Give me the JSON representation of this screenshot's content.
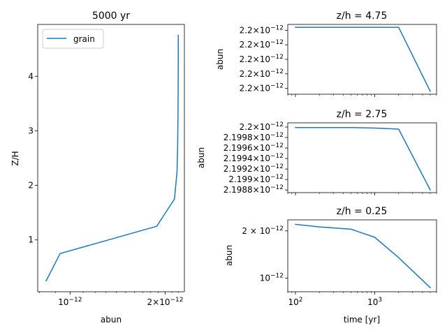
{
  "colors": {
    "series": "#1f77b4"
  },
  "chart_data": [
    {
      "type": "line",
      "title": "5000 yr",
      "xlabel": "abun",
      "ylabel": "Z/H",
      "x_scale": "log",
      "xlim": [
        7.9e-13,
        2.3e-12
      ],
      "ylim": [
        0.05,
        4.95
      ],
      "xticks": [
        {
          "label_base": "10",
          "label_exp": "−12",
          "coef": "",
          "value": 1e-12
        },
        {
          "label_base": "10",
          "label_exp": "−12",
          "coef": "2×",
          "value": 2e-12
        }
      ],
      "yticks": [
        {
          "label": "1",
          "value": 1
        },
        {
          "label": "2",
          "value": 2
        },
        {
          "label": "3",
          "value": 3
        },
        {
          "label": "4",
          "value": 4
        }
      ],
      "legend": {
        "position": "top-left",
        "entries": [
          "grain"
        ]
      },
      "series": [
        {
          "name": "grain",
          "x": [
            8.4e-13,
            9.3e-13,
            1.88e-12,
            2.14e-12,
            2.18e-12,
            2.19e-12,
            2.195e-12,
            2.198e-12,
            2.2e-12,
            2.2e-12
          ],
          "y": [
            0.25,
            0.75,
            1.25,
            1.75,
            2.25,
            2.75,
            3.25,
            3.75,
            4.25,
            4.75
          ]
        }
      ]
    },
    {
      "type": "line",
      "title": "z/h = 4.75",
      "xlabel": "",
      "ylabel": "abun",
      "x_scale": "log",
      "y_scale": "log",
      "xlim": [
        80,
        6000
      ],
      "ylim": [
        2.19976e-12,
        2.20024e-12
      ],
      "yticks": [
        {
          "coef": "2.2",
          "value": 2.2002e-12
        },
        {
          "coef": "2.2",
          "value": 2.2001e-12
        },
        {
          "coef": "2.2",
          "value": 2.2e-12
        },
        {
          "coef": "2.2",
          "value": 2.1999e-12
        },
        {
          "coef": "2.2",
          "value": 2.1998e-12
        }
      ],
      "series": [
        {
          "x": [
            100,
            200,
            500,
            1000,
            2000,
            5000
          ],
          "y": [
            2.20022e-12,
            2.20022e-12,
            2.20022e-12,
            2.20022e-12,
            2.20022e-12,
            2.19978e-12
          ]
        }
      ]
    },
    {
      "type": "line",
      "title": "z/h = 2.75",
      "xlabel": "",
      "ylabel": "abun",
      "x_scale": "log",
      "y_scale": "log",
      "xlim": [
        80,
        6000
      ],
      "ylim": [
        2.19875e-12,
        2.20008e-12
      ],
      "yticks": [
        {
          "coef": "2.2",
          "value": 2.2e-12
        },
        {
          "coef": "2.1998",
          "value": 2.1998e-12
        },
        {
          "coef": "2.1996",
          "value": 2.1996e-12
        },
        {
          "coef": "2.1994",
          "value": 2.1994e-12
        },
        {
          "coef": "2.1992",
          "value": 2.1992e-12
        },
        {
          "coef": "2.199",
          "value": 2.199e-12
        },
        {
          "coef": "2.1988",
          "value": 2.1988e-12
        }
      ],
      "series": [
        {
          "x": [
            100,
            200,
            500,
            1000,
            2000,
            5000
          ],
          "y": [
            2.19999e-12,
            2.19999e-12,
            2.19999e-12,
            2.19998e-12,
            2.19996e-12,
            2.1988e-12
          ]
        }
      ]
    },
    {
      "type": "line",
      "title": "z/h = 0.25",
      "xlabel": "time [yr]",
      "ylabel": "abun",
      "x_scale": "log",
      "y_scale": "log",
      "xlim": [
        80,
        6000
      ],
      "ylim": [
        8.2e-13,
        2.35e-12
      ],
      "xticks": [
        {
          "label_base": "10",
          "label_exp": "2",
          "value": 100
        },
        {
          "label_base": "10",
          "label_exp": "3",
          "value": 1000
        }
      ],
      "yticks": [
        {
          "label_base": "10",
          "label_exp": "−12",
          "coef": "2 × ",
          "value": 2e-12
        },
        {
          "label_base": "10",
          "label_exp": "−12",
          "coef": "",
          "value": 1e-12
        }
      ],
      "series": [
        {
          "x": [
            100,
            200,
            500,
            1000,
            2000,
            5000
          ],
          "y": [
            2.2e-12,
            2.12e-12,
            2.05e-12,
            1.82e-12,
            1.35e-12,
            8.7e-13
          ]
        }
      ]
    }
  ]
}
